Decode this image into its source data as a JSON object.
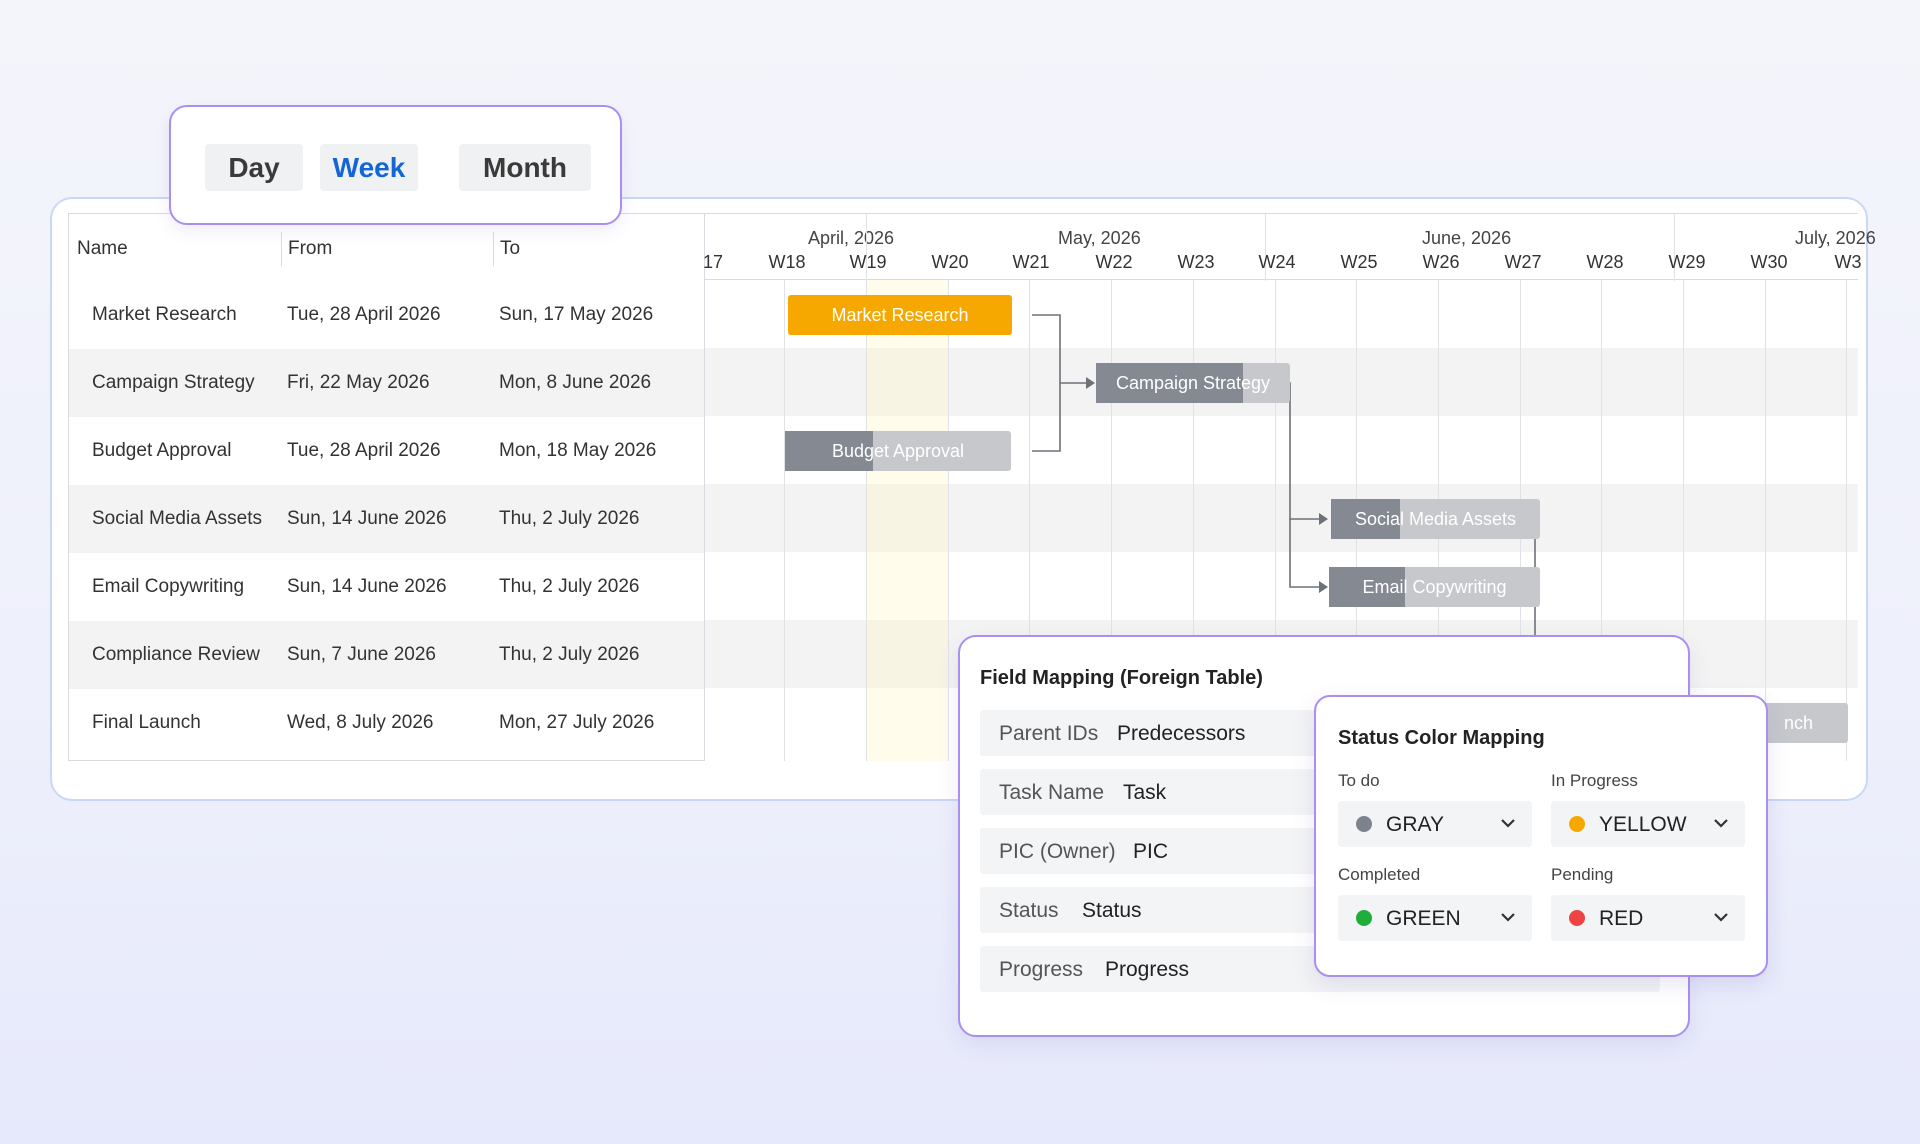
{
  "view_switch": {
    "day": "Day",
    "week": "Week",
    "month": "Month",
    "active": "Week"
  },
  "grid": {
    "columns": [
      "Name",
      "From",
      "To"
    ],
    "rows": [
      {
        "name": "Market Research",
        "from": "Tue, 28 April 2026",
        "to": "Sun, 17 May 2026"
      },
      {
        "name": "Campaign Strategy",
        "from": "Fri, 22 May 2026",
        "to": "Mon, 8 June 2026"
      },
      {
        "name": "Budget Approval",
        "from": "Tue, 28 April 2026",
        "to": "Mon, 18 May 2026"
      },
      {
        "name": "Social Media Assets",
        "from": "Sun, 14 June 2026",
        "to": "Thu, 2 July 2026"
      },
      {
        "name": "Email Copywriting",
        "from": "Sun, 14 June 2026",
        "to": "Thu, 2 July 2026"
      },
      {
        "name": "Compliance Review",
        "from": "Sun, 7 June 2026",
        "to": "Thu, 2 July 2026"
      },
      {
        "name": "Final Launch",
        "from": "Wed, 8 July 2026",
        "to": "Mon, 27 July 2026"
      }
    ]
  },
  "timeline": {
    "months": [
      "April, 2026",
      "May, 2026",
      "June, 2026",
      "July, 2026"
    ],
    "weeks": [
      "17",
      "W18",
      "W19",
      "W20",
      "W21",
      "W22",
      "W23",
      "W24",
      "W25",
      "W26",
      "W27",
      "W28",
      "W29",
      "W30",
      "W3"
    ],
    "bars": [
      {
        "label": "Market Research",
        "progress": 1.0,
        "color": "#f7a800"
      },
      {
        "label": "Campaign Strategy",
        "progress": 0.76,
        "color": "#848992"
      },
      {
        "label": "Budget Approval",
        "progress": 0.39,
        "color": "#848992"
      },
      {
        "label": "Social Media Assets",
        "progress": 0.33,
        "color": "#848992"
      },
      {
        "label": "Email Copywriting",
        "progress": 0.36,
        "color": "#848992"
      },
      {
        "label": "nch",
        "progress": 0.0,
        "color": "#848992"
      }
    ]
  },
  "field_mapping": {
    "title": "Field Mapping (Foreign Table)",
    "rows": [
      {
        "key": "Parent IDs",
        "value": "Predecessors"
      },
      {
        "key": "Task Name",
        "value": "Task"
      },
      {
        "key": "PIC (Owner)",
        "value": "PIC"
      },
      {
        "key": "Status",
        "value": "Status"
      },
      {
        "key": "Progress",
        "value": "Progress"
      }
    ]
  },
  "status_mapping": {
    "title": "Status Color Mapping",
    "items": [
      {
        "label": "To do",
        "value": "GRAY",
        "color": "#7d838c"
      },
      {
        "label": "In Progress",
        "value": "YELLOW",
        "color": "#f7a800"
      },
      {
        "label": "Completed",
        "value": "GREEN",
        "color": "#1fae3a"
      },
      {
        "label": "Pending",
        "value": "RED",
        "color": "#ee4444"
      }
    ]
  }
}
